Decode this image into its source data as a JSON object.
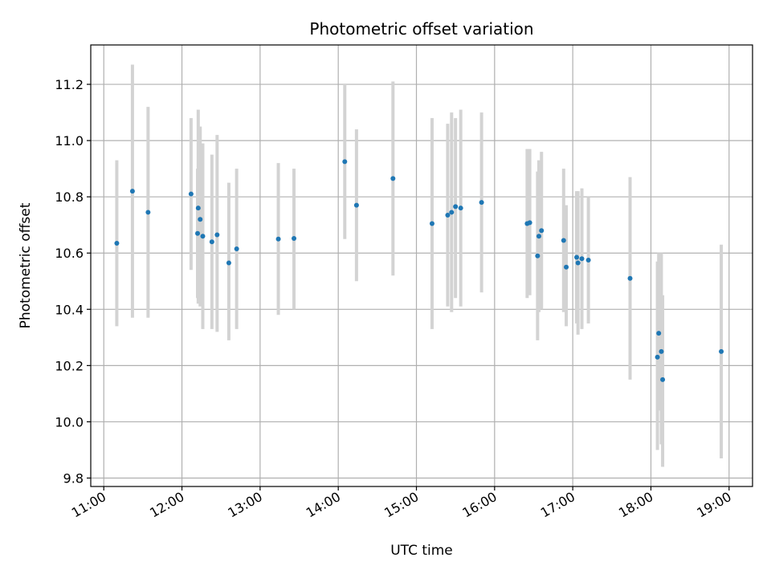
{
  "chart_data": {
    "type": "scatter",
    "title": "Photometric offset variation",
    "xlabel": "UTC time",
    "ylabel": "Photometric offset",
    "x_axis_kind": "time",
    "xlim": [
      "10:50",
      "19:18"
    ],
    "ylim": [
      9.77,
      11.34
    ],
    "x_ticks": [
      "11:00",
      "12:00",
      "13:00",
      "14:00",
      "15:00",
      "16:00",
      "17:00",
      "18:00",
      "19:00"
    ],
    "y_ticks": [
      "9.8",
      "10.0",
      "10.2",
      "10.4",
      "10.6",
      "10.8",
      "11.0",
      "11.2"
    ],
    "grid": true,
    "colors": {
      "point": "#1f77b4",
      "errorbar": "#d3d3d3",
      "grid": "#b0b0b0",
      "axes": "#000000"
    },
    "series": [
      {
        "points": [
          {
            "t": "11:10",
            "y": 10.635,
            "lo": 10.34,
            "hi": 10.93
          },
          {
            "t": "11:22",
            "y": 10.82,
            "lo": 10.37,
            "hi": 11.27
          },
          {
            "t": "11:34",
            "y": 10.745,
            "lo": 10.37,
            "hi": 11.12
          },
          {
            "t": "12:07",
            "y": 10.81,
            "lo": 10.54,
            "hi": 11.08
          },
          {
            "t": "12:12",
            "y": 10.67,
            "lo": 10.44,
            "hi": 10.9
          },
          {
            "t": "12:12.5",
            "y": 10.76,
            "lo": 10.42,
            "hi": 11.11
          },
          {
            "t": "12:14",
            "y": 10.72,
            "lo": 10.41,
            "hi": 11.05
          },
          {
            "t": "12:16",
            "y": 10.66,
            "lo": 10.33,
            "hi": 10.99
          },
          {
            "t": "12:23",
            "y": 10.64,
            "lo": 10.33,
            "hi": 10.95
          },
          {
            "t": "12:27",
            "y": 10.665,
            "lo": 10.32,
            "hi": 11.02
          },
          {
            "t": "12:36",
            "y": 10.565,
            "lo": 10.29,
            "hi": 10.85
          },
          {
            "t": "12:42",
            "y": 10.615,
            "lo": 10.33,
            "hi": 10.9
          },
          {
            "t": "13:14",
            "y": 10.65,
            "lo": 10.38,
            "hi": 10.92
          },
          {
            "t": "13:26",
            "y": 10.652,
            "lo": 10.4,
            "hi": 10.9
          },
          {
            "t": "14:05",
            "y": 10.925,
            "lo": 10.65,
            "hi": 11.2
          },
          {
            "t": "14:14",
            "y": 10.77,
            "lo": 10.5,
            "hi": 11.04
          },
          {
            "t": "14:42",
            "y": 10.865,
            "lo": 10.52,
            "hi": 11.21
          },
          {
            "t": "15:12",
            "y": 10.705,
            "lo": 10.33,
            "hi": 11.08
          },
          {
            "t": "15:24",
            "y": 10.735,
            "lo": 10.41,
            "hi": 11.06
          },
          {
            "t": "15:27",
            "y": 10.745,
            "lo": 10.39,
            "hi": 11.1
          },
          {
            "t": "15:30",
            "y": 10.765,
            "lo": 10.44,
            "hi": 11.08
          },
          {
            "t": "15:34",
            "y": 10.76,
            "lo": 10.41,
            "hi": 11.11
          },
          {
            "t": "15:50",
            "y": 10.78,
            "lo": 10.46,
            "hi": 11.1
          },
          {
            "t": "16:25",
            "y": 10.705,
            "lo": 10.44,
            "hi": 10.97
          },
          {
            "t": "16:27",
            "y": 10.708,
            "lo": 10.45,
            "hi": 10.97
          },
          {
            "t": "16:33",
            "y": 10.59,
            "lo": 10.29,
            "hi": 10.89
          },
          {
            "t": "16:34",
            "y": 10.66,
            "lo": 10.39,
            "hi": 10.93
          },
          {
            "t": "16:36",
            "y": 10.68,
            "lo": 10.4,
            "hi": 10.96
          },
          {
            "t": "16:53",
            "y": 10.645,
            "lo": 10.39,
            "hi": 10.9
          },
          {
            "t": "16:55",
            "y": 10.55,
            "lo": 10.34,
            "hi": 10.77
          },
          {
            "t": "17:03",
            "y": 10.585,
            "lo": 10.35,
            "hi": 10.82
          },
          {
            "t": "17:04",
            "y": 10.565,
            "lo": 10.31,
            "hi": 10.82
          },
          {
            "t": "17:07",
            "y": 10.58,
            "lo": 10.33,
            "hi": 10.83
          },
          {
            "t": "17:12",
            "y": 10.575,
            "lo": 10.35,
            "hi": 10.8
          },
          {
            "t": "17:44",
            "y": 10.51,
            "lo": 10.15,
            "hi": 10.87
          },
          {
            "t": "18:05",
            "y": 10.23,
            "lo": 9.9,
            "hi": 10.57
          },
          {
            "t": "18:06",
            "y": 10.315,
            "lo": 10.04,
            "hi": 10.6
          },
          {
            "t": "18:08",
            "y": 10.25,
            "lo": 9.92,
            "hi": 10.6
          },
          {
            "t": "18:09",
            "y": 10.15,
            "lo": 9.84,
            "hi": 10.45
          },
          {
            "t": "18:54",
            "y": 10.25,
            "lo": 9.87,
            "hi": 10.63
          }
        ]
      }
    ]
  }
}
